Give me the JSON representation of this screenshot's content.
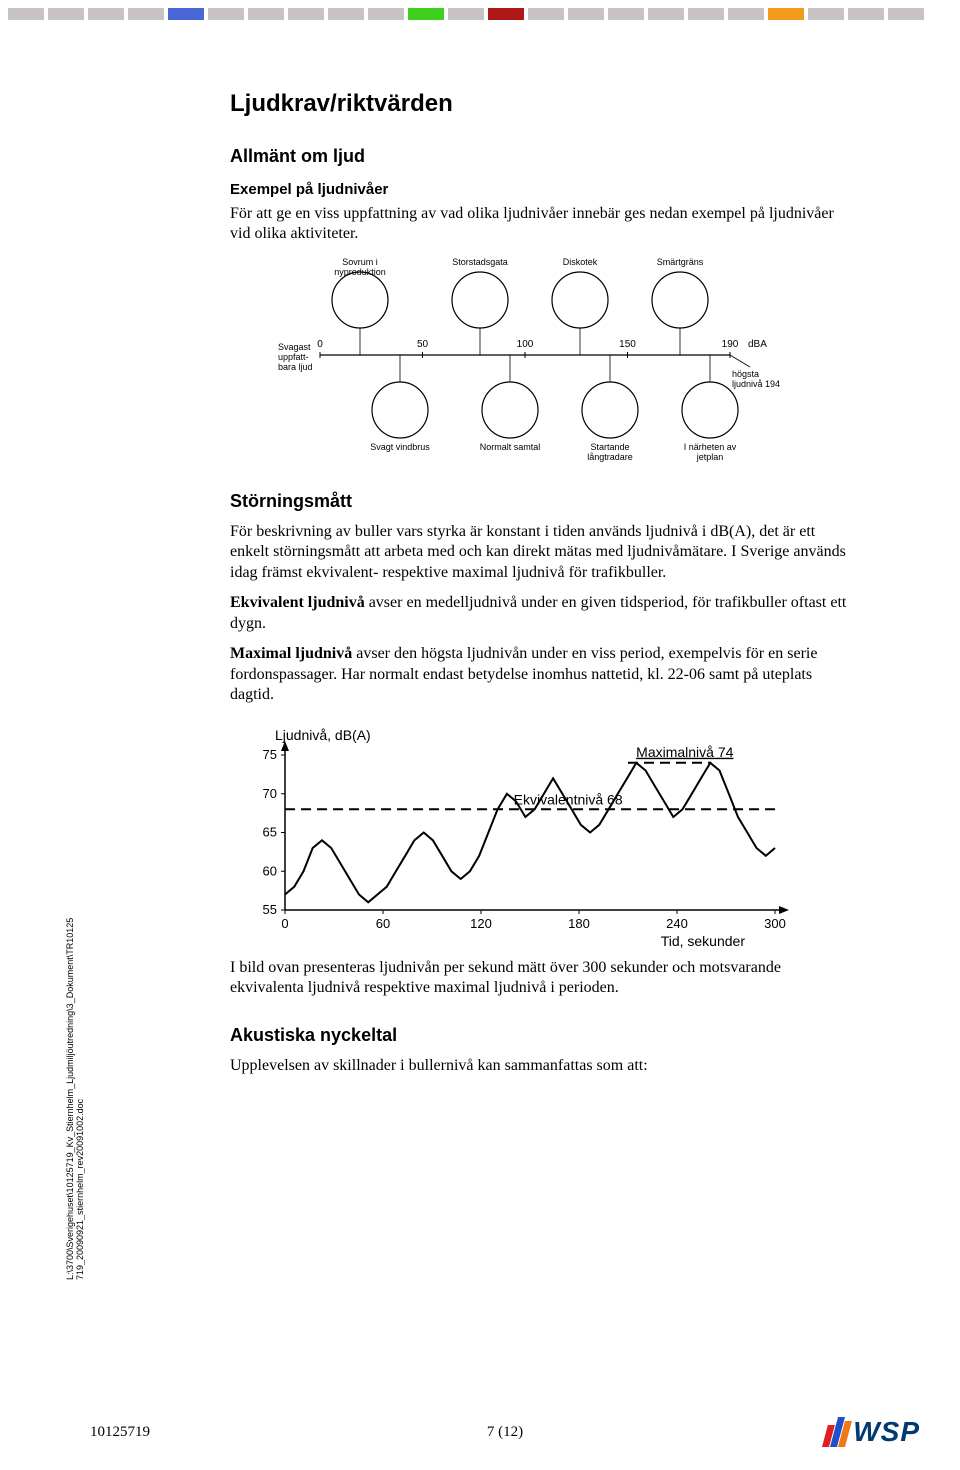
{
  "top_strip": {
    "colors": [
      "#c9c3c3",
      "#c9c3c3",
      "#c9c3c3",
      "#c9c3c3",
      "#4a67d8",
      "#c9c3c3",
      "#c9c3c3",
      "#c9c3c3",
      "#c9c3c3",
      "#c9c3c3",
      "#3fcf1f",
      "#c9c3c3",
      "#b01818",
      "#c9c3c3",
      "#c9c3c3",
      "#c9c3c3",
      "#c9c3c3",
      "#c9c3c3",
      "#c9c3c3",
      "#f39a1d",
      "#c9c3c3",
      "#c9c3c3",
      "#c9c3c3"
    ]
  },
  "headings": {
    "title": "Ljudkrav/riktvärden",
    "allmant": "Allmänt om ljud",
    "exempel": "Exempel på ljudnivåer",
    "storning": "Störningsmått",
    "akustiska": "Akustiska nyckeltal"
  },
  "paras": {
    "exempel_intro": "För att ge en viss uppfattning av vad olika ljudnivåer innebär ges nedan exempel på ljudnivåer vid olika aktiviteter.",
    "storning_1": "För beskrivning av buller vars styrka är konstant i tiden används ljudnivå i dB(A), det är ett enkelt störningsmått att arbeta med och kan direkt mätas med ljudnivåmätare. I Sverige används idag främst ekvivalent- respektive maximal ljudnivå för trafikbuller.",
    "ekvivalent_lead": "Ekvivalent ljudnivå",
    "ekvivalent_rest": " avser en medelljudnivå under en given tidsperiod, för trafikbuller oftast ett dygn.",
    "maximal_lead": "Maximal ljudnivå",
    "maximal_rest": " avser den högsta ljudnivån under en viss period, exempelvis för en serie fordonspassager. Har normalt endast betydelse inomhus nattetid, kl. 22-06 samt på uteplats dagtid.",
    "chart_caption": "I bild ovan presenteras ljudnivån per sekund mätt över 300 sekunder och motsvarande ekvivalenta ljudnivå respektive maximal ljudnivå i perioden.",
    "akustiska_intro": "Upplevelsen av skillnader i bullernivå kan sammanfattas som att:"
  },
  "illustration": {
    "top_labels": [
      "Sovrum i\nnyproduktion",
      "Storstadsgata",
      "Diskotek",
      "Smärtgräns"
    ],
    "bottom_labels": [
      "Svagt vindbrus",
      "Normalt samtal",
      "Startande\nlångtradare",
      "I närheten av\njetplan"
    ],
    "left_top": "Svagast\nuppfatt-\nbara ljud",
    "right_note": "högsta\nljudnivå 194",
    "scale_values": [
      "0",
      "50",
      "100",
      "150",
      "190"
    ],
    "scale_unit": "dBA"
  },
  "chart": {
    "type": "line",
    "y_title": "Ljudnivå,  dB(A)",
    "x_title": "Tid, sekunder",
    "ylim": [
      55,
      75
    ],
    "y_ticks": [
      55,
      60,
      65,
      70,
      75
    ],
    "xlim": [
      0,
      300
    ],
    "x_ticks": [
      0,
      60,
      120,
      180,
      240,
      300
    ],
    "ekv_label": "Ekvivalentnivå 68",
    "ekv_value": 68,
    "max_label": "Maximalnivå 74",
    "max_value": 74,
    "axis_color": "#000000",
    "line_color": "#000000",
    "dash_color": "#000000",
    "background_color": "#ffffff",
    "line_width": 2,
    "series": [
      57,
      58,
      60,
      63,
      64,
      63,
      61,
      59,
      57,
      56,
      57,
      58,
      60,
      62,
      64,
      65,
      64,
      62,
      60,
      59,
      60,
      62,
      65,
      68,
      70,
      69,
      67,
      68,
      70,
      72,
      70,
      68,
      66,
      65,
      66,
      68,
      70,
      72,
      74,
      73,
      71,
      69,
      67,
      68,
      70,
      72,
      74,
      73,
      70,
      67,
      65,
      63,
      62,
      63
    ]
  },
  "side_path": "L:\\3700\\Sverigehuset\\10125719_Kv_Stiernhelm_Ljudmiljöutredning\\3_Dokument\\TR10125\n719_20090921_stiernhelm_rev20091002.doc",
  "footer": {
    "doc_no": "10125719",
    "page": "7 (12)",
    "logo_text": "WSP",
    "logo_colors": [
      "#e02020",
      "#2050c8",
      "#f07818"
    ],
    "logo_text_color": "#003a6f"
  }
}
